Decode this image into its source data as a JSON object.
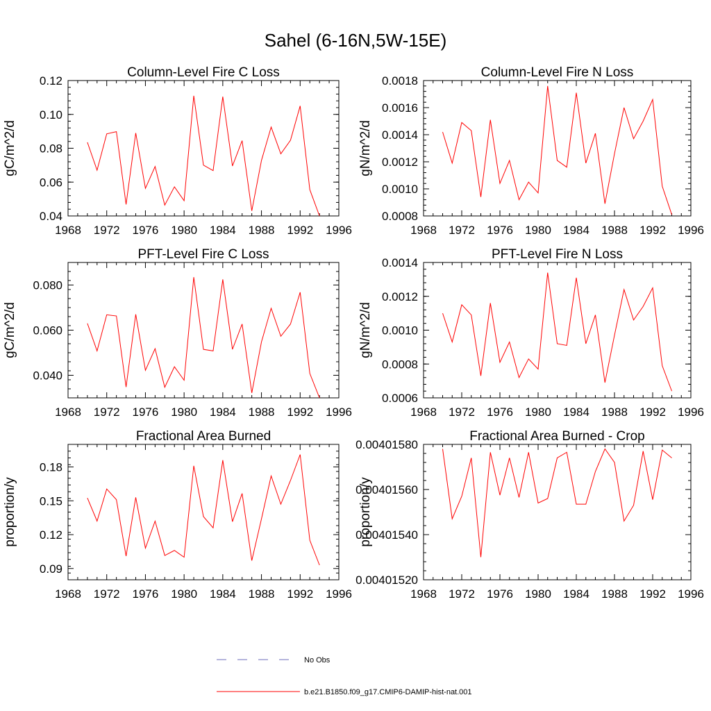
{
  "main_title": "Sahel (6-16N,5W-15E)",
  "colors": {
    "model_line": "#ff0000",
    "obs_line": "#6a6ab8",
    "axes": "#000000"
  },
  "legend": [
    {
      "label": "No Obs",
      "style": "dashed",
      "color": "#6a6ab8"
    },
    {
      "label": "b.e21.B1850.f09_g17.CMIP6-DAMIP-hist-nat.001",
      "style": "solid",
      "color": "#ff0000"
    }
  ],
  "chart_data": [
    {
      "type": "line",
      "title": "Column-Level Fire C Loss",
      "ylabel": "gC/m^2/d",
      "xlim": [
        1968,
        1996
      ],
      "ylim": [
        0.04,
        0.12
      ],
      "xticks": [
        "1968",
        "1972",
        "1976",
        "1980",
        "1984",
        "1988",
        "1992",
        "1996"
      ],
      "yticks": [
        "0.04",
        "0.06",
        "0.08",
        "0.10",
        "0.12"
      ],
      "x": [
        1970,
        1971,
        1972,
        1973,
        1974,
        1975,
        1976,
        1977,
        1978,
        1979,
        1980,
        1981,
        1982,
        1983,
        1984,
        1985,
        1986,
        1987,
        1988,
        1989,
        1990,
        1991,
        1992,
        1993,
        1994
      ],
      "series": [
        {
          "values": [
            0.0835,
            0.067,
            0.0885,
            0.0898,
            0.0468,
            0.089,
            0.0563,
            0.0692,
            0.0464,
            0.0572,
            0.049,
            0.111,
            0.07,
            0.0668,
            0.1105,
            0.0695,
            0.0845,
            0.043,
            0.0728,
            0.0925,
            0.0767,
            0.0847,
            0.105,
            0.0555,
            0.04
          ]
        }
      ]
    },
    {
      "type": "line",
      "title": "Column-Level Fire N Loss",
      "ylabel": "gN/m^2/d",
      "xlim": [
        1968,
        1996
      ],
      "ylim": [
        0.0008,
        0.0018
      ],
      "xticks": [
        "1968",
        "1972",
        "1976",
        "1980",
        "1984",
        "1988",
        "1992",
        "1996"
      ],
      "yticks": [
        "0.0008",
        "0.0010",
        "0.0012",
        "0.0014",
        "0.0016",
        "0.0018"
      ],
      "x": [
        1970,
        1971,
        1972,
        1973,
        1974,
        1975,
        1976,
        1977,
        1978,
        1979,
        1980,
        1981,
        1982,
        1983,
        1984,
        1985,
        1986,
        1987,
        1988,
        1989,
        1990,
        1991,
        1992,
        1993,
        1994
      ],
      "series": [
        {
          "values": [
            0.00142,
            0.00119,
            0.00149,
            0.00143,
            0.00094,
            0.00151,
            0.00104,
            0.00121,
            0.00092,
            0.00105,
            0.00097,
            0.00176,
            0.00121,
            0.00116,
            0.00171,
            0.00119,
            0.00141,
            0.00089,
            0.00126,
            0.0016,
            0.00137,
            0.0015,
            0.00166,
            0.00102,
            0.00081
          ]
        }
      ]
    },
    {
      "type": "line",
      "title": "PFT-Level Fire C Loss",
      "ylabel": "gC/m^2/d",
      "xlim": [
        1968,
        1996
      ],
      "ylim": [
        0.03,
        0.09
      ],
      "xticks": [
        "1968",
        "1972",
        "1976",
        "1980",
        "1984",
        "1988",
        "1992",
        "1996"
      ],
      "yticks": [
        "0.040",
        "0.060",
        "0.080"
      ],
      "x": [
        1970,
        1971,
        1972,
        1973,
        1974,
        1975,
        1976,
        1977,
        1978,
        1979,
        1980,
        1981,
        1982,
        1983,
        1984,
        1985,
        1986,
        1987,
        1988,
        1989,
        1990,
        1991,
        1992,
        1993,
        1994
      ],
      "series": [
        {
          "values": [
            0.063,
            0.0508,
            0.0668,
            0.0663,
            0.0348,
            0.067,
            0.0422,
            0.0518,
            0.0347,
            0.0438,
            0.0378,
            0.0835,
            0.0515,
            0.0508,
            0.0825,
            0.0515,
            0.0627,
            0.0322,
            0.0548,
            0.0697,
            0.0573,
            0.0627,
            0.0768,
            0.0408,
            0.03
          ]
        }
      ]
    },
    {
      "type": "line",
      "title": "PFT-Level Fire N Loss",
      "ylabel": "gN/m^2/d",
      "xlim": [
        1968,
        1996
      ],
      "ylim": [
        0.0006,
        0.0014
      ],
      "xticks": [
        "1968",
        "1972",
        "1976",
        "1980",
        "1984",
        "1988",
        "1992",
        "1996"
      ],
      "yticks": [
        "0.0006",
        "0.0008",
        "0.0010",
        "0.0012",
        "0.0014"
      ],
      "x": [
        1970,
        1971,
        1972,
        1973,
        1974,
        1975,
        1976,
        1977,
        1978,
        1979,
        1980,
        1981,
        1982,
        1983,
        1984,
        1985,
        1986,
        1987,
        1988,
        1989,
        1990,
        1991,
        1992,
        1993,
        1994
      ],
      "series": [
        {
          "values": [
            0.0011,
            0.00093,
            0.00115,
            0.00109,
            0.00073,
            0.00116,
            0.00081,
            0.00093,
            0.00072,
            0.00083,
            0.00077,
            0.00134,
            0.00092,
            0.00091,
            0.00131,
            0.00092,
            0.00109,
            0.00069,
            0.00097,
            0.00124,
            0.00106,
            0.00114,
            0.00125,
            0.00079,
            0.00064
          ]
        }
      ]
    },
    {
      "type": "line",
      "title": "Fractional Area Burned",
      "ylabel": "proportion/y",
      "xlim": [
        1968,
        1996
      ],
      "ylim": [
        0.08,
        0.2
      ],
      "xticks": [
        "1968",
        "1972",
        "1976",
        "1980",
        "1984",
        "1988",
        "1992",
        "1996"
      ],
      "yticks": [
        "0.09",
        "0.12",
        "0.15",
        "0.18"
      ],
      "x": [
        1970,
        1971,
        1972,
        1973,
        1974,
        1975,
        1976,
        1977,
        1978,
        1979,
        1980,
        1981,
        1982,
        1983,
        1984,
        1985,
        1986,
        1987,
        1988,
        1989,
        1990,
        1991,
        1992,
        1993,
        1994
      ],
      "series": [
        {
          "values": [
            0.1525,
            0.132,
            0.1605,
            0.151,
            0.101,
            0.153,
            0.108,
            0.132,
            0.1015,
            0.106,
            0.1,
            0.181,
            0.136,
            0.126,
            0.186,
            0.1315,
            0.1565,
            0.097,
            0.134,
            0.172,
            0.147,
            0.168,
            0.191,
            0.115,
            0.093
          ]
        }
      ]
    },
    {
      "type": "line",
      "title": "Fractional Area Burned - Crop",
      "ylabel": "proportion/y",
      "xlim": [
        1968,
        1996
      ],
      "ylim": [
        0.0040152,
        0.0040158
      ],
      "xticks": [
        "1968",
        "1972",
        "1976",
        "1980",
        "1984",
        "1988",
        "1992",
        "1996"
      ],
      "yticks": [
        "0.00401520",
        "0.00401540",
        "0.00401560",
        "0.00401580"
      ],
      "x": [
        1970,
        1971,
        1972,
        1973,
        1974,
        1975,
        1976,
        1977,
        1978,
        1979,
        1980,
        1981,
        1982,
        1983,
        1984,
        1985,
        1986,
        1987,
        1988,
        1989,
        1990,
        1991,
        1992,
        1993,
        1994
      ],
      "series": [
        {
          "values": [
            0.00401578,
            0.00401547,
            0.00401557,
            0.00401574,
            0.0040153,
            0.004015765,
            0.004015575,
            0.00401574,
            0.004015565,
            0.004015765,
            0.00401554,
            0.00401556,
            0.00401574,
            0.004015765,
            0.004015535,
            0.004015535,
            0.00401568,
            0.00401578,
            0.00401572,
            0.00401546,
            0.00401553,
            0.00401577,
            0.004015555,
            0.004015775,
            0.00401574
          ]
        }
      ]
    }
  ]
}
